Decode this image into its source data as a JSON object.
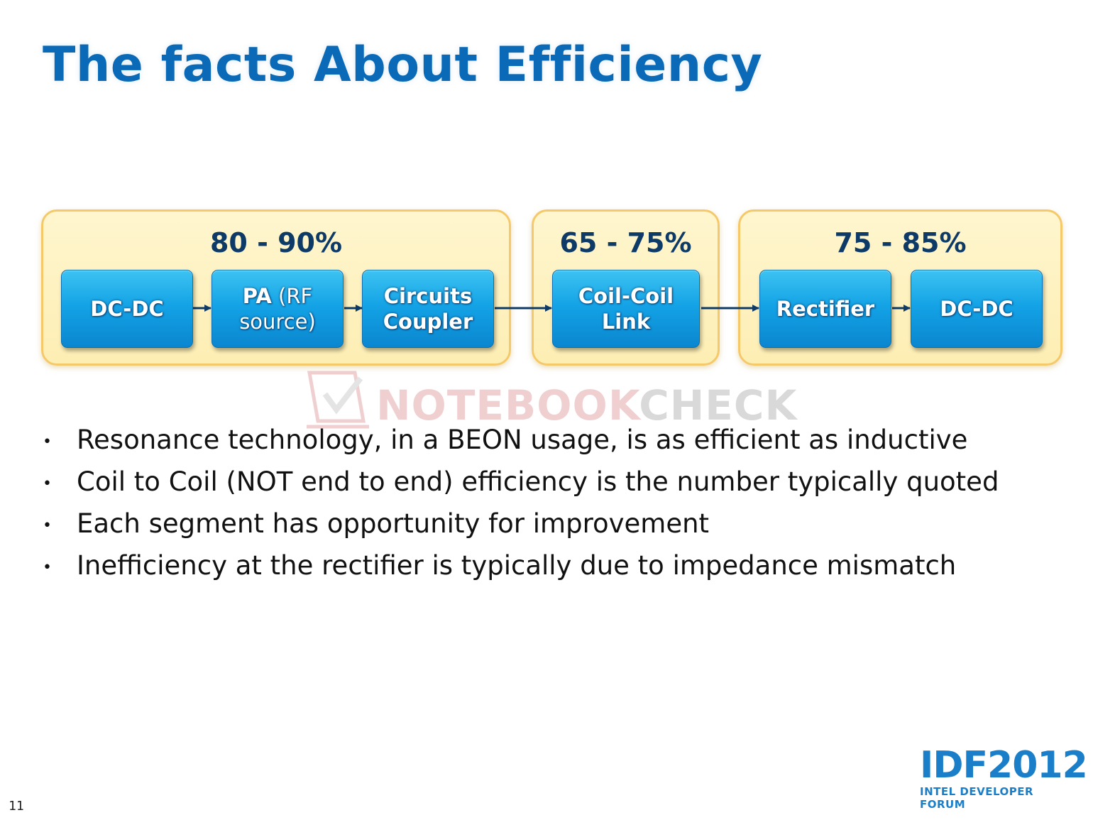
{
  "title": "The facts About Efficiency",
  "groups": [
    {
      "label": "80 - 90%"
    },
    {
      "label": "65 - 75%"
    },
    {
      "label": "75 - 85%"
    }
  ],
  "boxes": {
    "dc_dc_1": {
      "line1": "DC-DC"
    },
    "pa": {
      "line1_bold": "PA",
      "line1_light": " (RF",
      "line2": "source)"
    },
    "circuits": {
      "line1": "Circuits",
      "line2": "Coupler"
    },
    "coil": {
      "line1": "Coil-Coil",
      "line2": "Link"
    },
    "rectifier": {
      "line1": "Rectifier"
    },
    "dc_dc_2": {
      "line1": "DC-DC"
    }
  },
  "watermark": {
    "part1": "NOTEBOOK",
    "part2": "CHECK"
  },
  "bullets": [
    "Resonance technology, in a BEON usage, is as efficient as inductive",
    "Coil to Coil (NOT end to end) efficiency is the number typically quoted",
    "Each segment has opportunity for improvement",
    "Inefficiency at the rectifier is typically due to impedance mismatch"
  ],
  "bullet_symbol": "•",
  "logo": {
    "main": "IDF2012",
    "sub": "INTEL DEVELOPER FORUM"
  },
  "page_number": "11",
  "colors": {
    "title": "#0a6ab8",
    "group_fill": "#fdf0b8",
    "group_border": "#f5c96a",
    "box_fill": "#14a3e6",
    "arrow": "#0d3a66",
    "logo": "#1a7fc8"
  }
}
